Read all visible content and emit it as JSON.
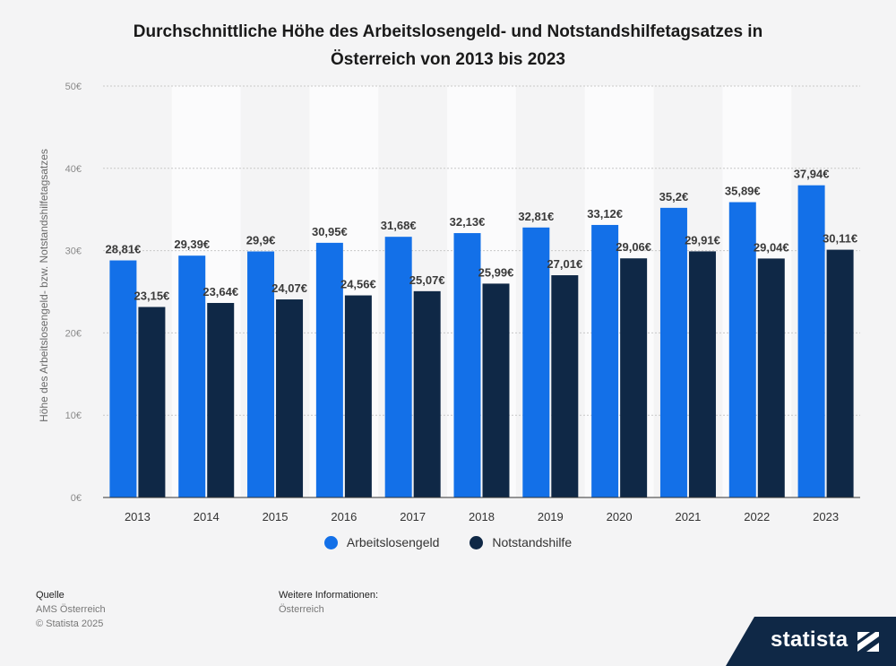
{
  "header": {
    "title_line1": "Durchschnittliche Höhe des Arbeitslosengeld- und Notstandshilfetagsatzes in",
    "title_line2": "Österreich von 2013 bis 2023"
  },
  "chart_data": {
    "type": "bar",
    "title": "Durchschnittliche Höhe des Arbeitslosengeld- und Notstandshilfetagsatzes in Österreich von 2013 bis 2023",
    "xlabel": "",
    "ylabel": "Höhe des Arbeitslosengeld- bzw. Notstandshilfetagsatzes",
    "ylim": [
      0,
      50
    ],
    "yticks": [
      0,
      10,
      20,
      30,
      40,
      50
    ],
    "ytick_labels": [
      "0€",
      "10€",
      "20€",
      "30€",
      "40€",
      "50€"
    ],
    "grid": true,
    "legend_position": "bottom",
    "categories": [
      "2013",
      "2014",
      "2015",
      "2016",
      "2017",
      "2018",
      "2019",
      "2020",
      "2021",
      "2022",
      "2023"
    ],
    "series": [
      {
        "name": "Arbeitslosengeld",
        "color": "#1370e8",
        "values": [
          28.81,
          29.39,
          29.9,
          30.95,
          31.68,
          32.13,
          32.81,
          33.12,
          35.2,
          35.89,
          37.94
        ],
        "labels": [
          "28,81€",
          "29,39€",
          "29,9€",
          "30,95€",
          "31,68€",
          "32,13€",
          "32,81€",
          "33,12€",
          "35,2€",
          "35,89€",
          "37,94€"
        ]
      },
      {
        "name": "Notstandshilfe",
        "color": "#0f2846",
        "values": [
          23.15,
          23.64,
          24.07,
          24.56,
          25.07,
          25.99,
          27.01,
          29.06,
          29.91,
          29.04,
          30.11
        ],
        "labels": [
          "23,15€",
          "23,64€",
          "24,07€",
          "24,56€",
          "25,07€",
          "25,99€",
          "27,01€",
          "29,06€",
          "29,91€",
          "29,04€",
          "30,11€"
        ]
      }
    ]
  },
  "footer": {
    "source_heading": "Quelle",
    "source_name": "AMS Österreich",
    "copyright": "© Statista 2025",
    "info_heading": "Weitere Informationen:",
    "info_text": "Österreich"
  },
  "brand": {
    "name": "statista",
    "color": "#0f2846"
  }
}
